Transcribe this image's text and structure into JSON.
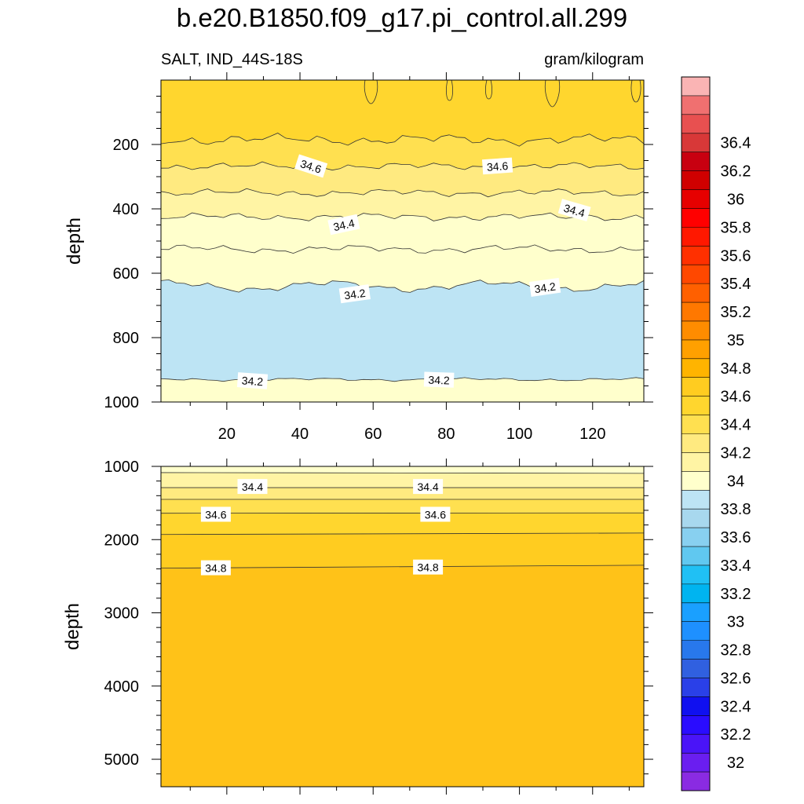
{
  "chart_data": {
    "type": "contour",
    "title": "b.e20.B1850.f09_g17.pi_control.all.299",
    "left_subtitle": "SALT, IND_44S-18S",
    "right_subtitle": "gram/kilogram",
    "panels": [
      {
        "name": "upper",
        "ylabel": "depth",
        "xlim": [
          2,
          134
        ],
        "ylim": [
          1000,
          0
        ],
        "x_ticks": [
          20,
          40,
          60,
          80,
          100,
          120
        ],
        "y_ticks": [
          200,
          400,
          600,
          800,
          1000
        ],
        "contour_labels": [
          {
            "text": "34.6",
            "x": 43,
            "depth": 268
          },
          {
            "text": "34.6",
            "x": 94,
            "depth": 268
          },
          {
            "text": "34.4",
            "x": 52,
            "depth": 450
          },
          {
            "text": "34.4",
            "x": 115,
            "depth": 405
          },
          {
            "text": "34.2",
            "x": 55,
            "depth": 665
          },
          {
            "text": "34.2",
            "x": 107,
            "depth": 645
          },
          {
            "text": "34.2",
            "x": 27,
            "depth": 935
          },
          {
            "text": "34.2",
            "x": 78,
            "depth": 932
          }
        ]
      },
      {
        "name": "lower",
        "ylabel": "depth",
        "xlim": [
          2,
          134
        ],
        "ylim": [
          5375,
          1000
        ],
        "y_ticks": [
          1000,
          2000,
          3000,
          4000,
          5000
        ],
        "contour_labels": [
          {
            "text": "34.4",
            "x": 27,
            "depth": 1280
          },
          {
            "text": "34.4",
            "x": 75,
            "depth": 1280
          },
          {
            "text": "34.6",
            "x": 17,
            "depth": 1660
          },
          {
            "text": "34.6",
            "x": 77,
            "depth": 1660
          },
          {
            "text": "34.8",
            "x": 17,
            "depth": 2390
          },
          {
            "text": "34.8",
            "x": 75,
            "depth": 2380
          }
        ]
      }
    ],
    "colorbar": {
      "labels": [
        "32",
        "32.2",
        "32.4",
        "32.6",
        "32.8",
        "33",
        "33.2",
        "33.4",
        "33.6",
        "33.8",
        "34",
        "34.2",
        "34.4",
        "34.6",
        "34.8",
        "35",
        "35.2",
        "35.4",
        "35.6",
        "35.8",
        "36",
        "36.2",
        "36.4"
      ],
      "colors": [
        "#8a2be2",
        "#6a1ef0",
        "#4a14f8",
        "#2a0cff",
        "#1010f0",
        "#2a40e8",
        "#3060e0",
        "#2878ec",
        "#1e90ff",
        "#1aa0ff",
        "#00b4f0",
        "#20c0f4",
        "#60c8f0",
        "#88d0f0",
        "#a8d8ee",
        "#bde4f4",
        "#ffffcc",
        "#fff4a4",
        "#ffea80",
        "#ffe050",
        "#ffd62e",
        "#ffcc20",
        "#ffb400",
        "#ffa000",
        "#ff8c00",
        "#ff7800",
        "#ff6000",
        "#ff4800",
        "#ff3000",
        "#ff1800",
        "#ff0000",
        "#e60000",
        "#d00000",
        "#c80010",
        "#d83838",
        "#e85050",
        "#f07070",
        "#fab4b4"
      ]
    }
  }
}
